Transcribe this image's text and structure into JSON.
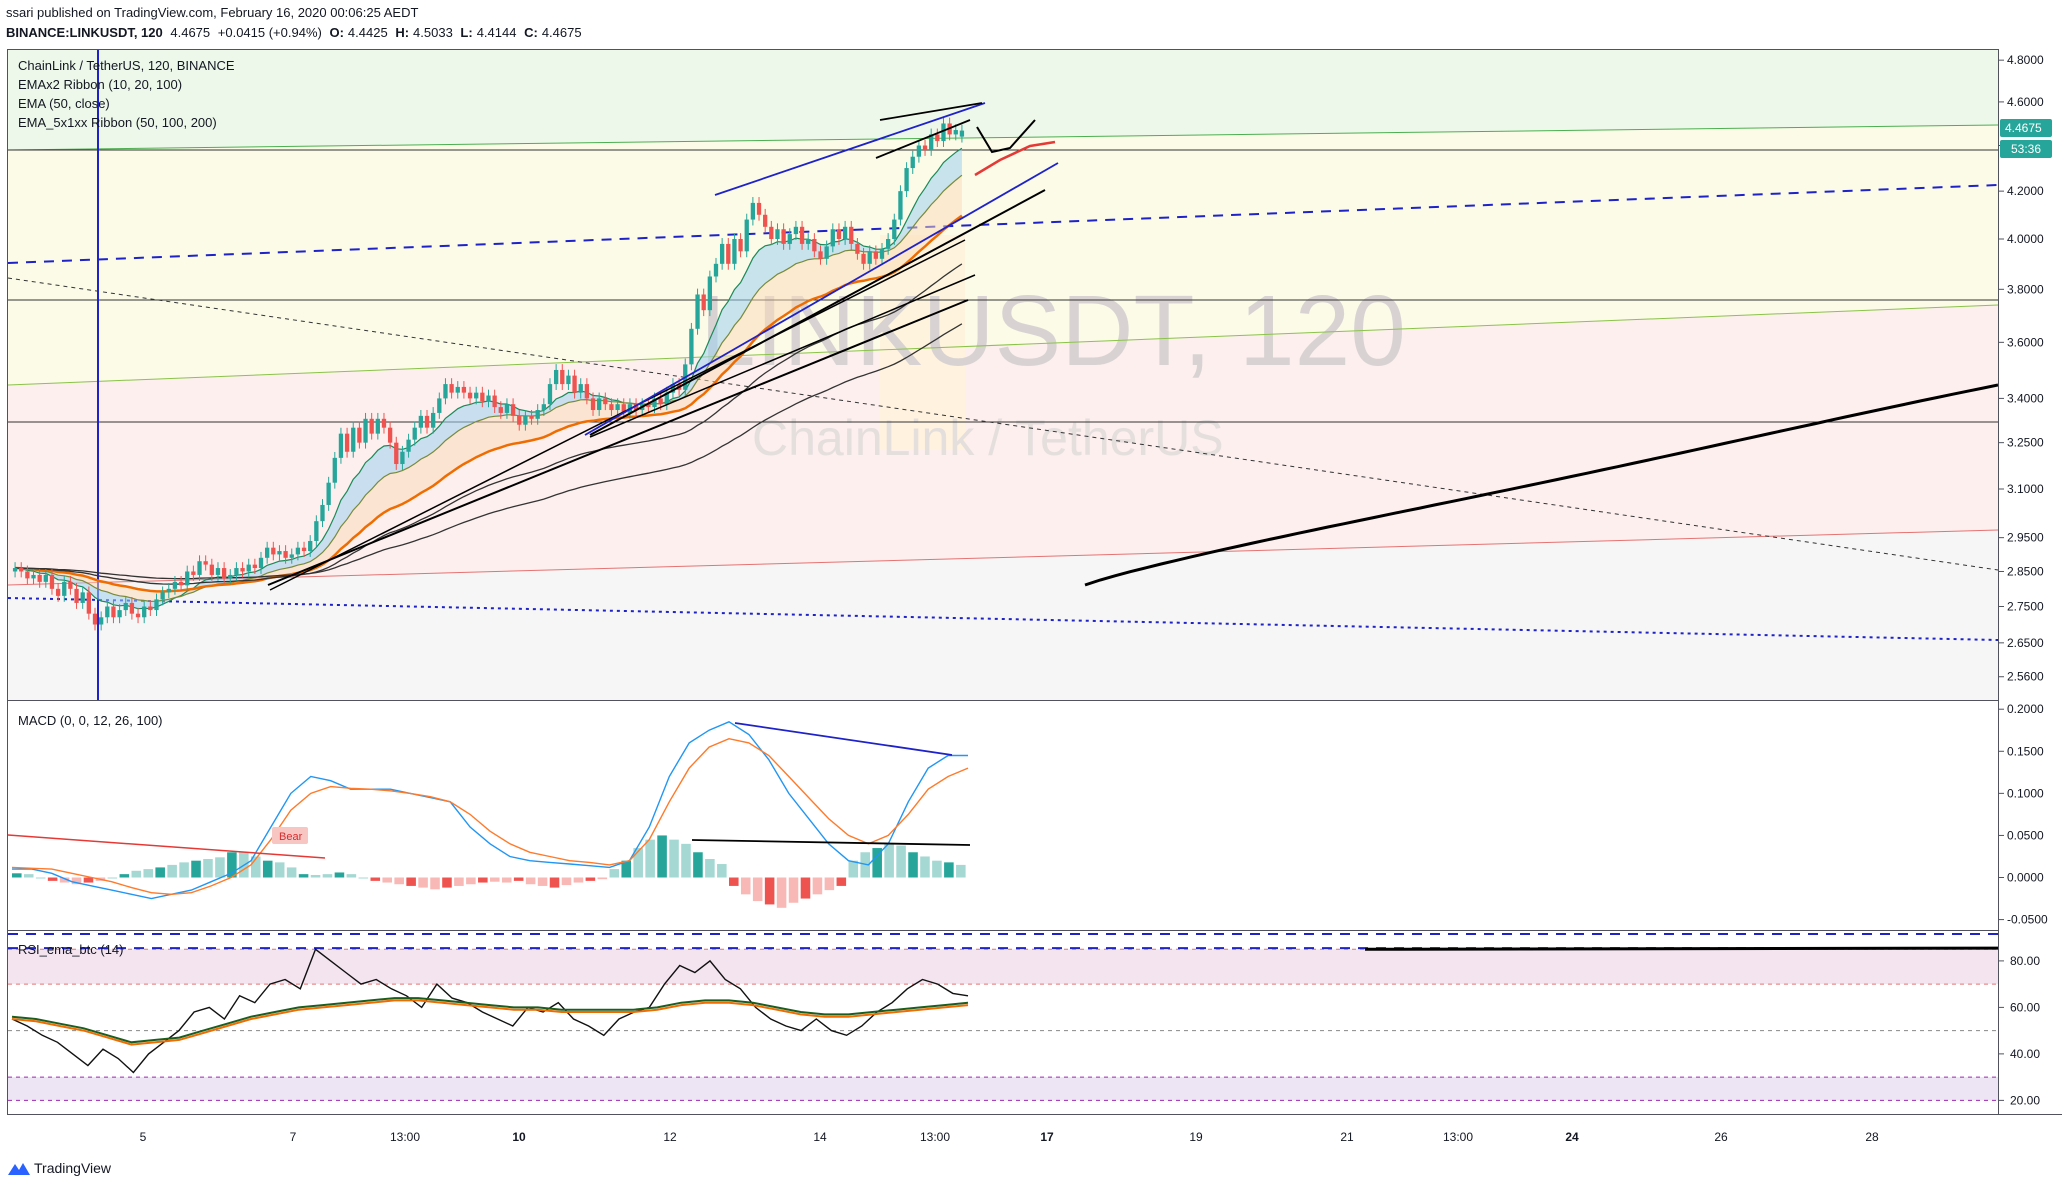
{
  "header": {
    "published": "ssari published on TradingView.com, February 16, 2020 00:06:25 AEDT",
    "symbol": "BINANCE:LINKUSDT, 120",
    "last": "4.4675",
    "change": "+0.0415 (+0.94%)",
    "o_label": "O:",
    "o": "4.4425",
    "h_label": "H:",
    "h": "4.5033",
    "l_label": "L:",
    "l": "4.4144",
    "c_label": "C:",
    "c": "4.4675"
  },
  "legend": {
    "title": "ChainLink / TetherUS, 120, BINANCE",
    "ind1": "EMAx2 Ribbon (10, 20, 100)",
    "ind2": "EMA (50, close)",
    "ind3": "EMA_5x1xx Ribbon (50, 100, 200)",
    "macd": "MACD (0, 0, 12, 26, 100)",
    "rsi": "RSI_ema_btc (14)",
    "bear": "Bear"
  },
  "watermark": {
    "symbol": "LINKUSDT, 120",
    "name": "ChainLink / TetherUS"
  },
  "price_badges": {
    "last": "4.4675",
    "countdown": "53:36"
  },
  "brand": "TradingView",
  "colors": {
    "up": "#26a69a",
    "down": "#ef5350",
    "ema_orange": "#ef6c00",
    "blue": "#1e22c8",
    "black": "#000000"
  },
  "chart_data": [
    {
      "type": "candlestick",
      "title": "ChainLink / TetherUS, 120, BINANCE",
      "ylim": [
        2.5,
        4.85
      ],
      "y_ticks": [
        "4.8000",
        "4.6000",
        "4.4000",
        "4.2000",
        "4.0000",
        "3.8000",
        "3.6000",
        "3.4000",
        "3.2500",
        "3.1000",
        "2.9500",
        "2.8500",
        "2.7500",
        "2.6500",
        "2.5600"
      ],
      "x_ticks": [
        "5",
        "7",
        "13:00",
        "10",
        "12",
        "14",
        "13:00",
        "17",
        "19",
        "21",
        "13:00",
        "24",
        "26",
        "28"
      ],
      "candles_approx": [
        [
          2.85,
          2.86
        ],
        [
          2.86,
          2.85
        ],
        [
          2.85,
          2.83
        ],
        [
          2.83,
          2.84
        ],
        [
          2.84,
          2.82
        ],
        [
          2.82,
          2.84
        ],
        [
          2.84,
          2.8
        ],
        [
          2.8,
          2.78
        ],
        [
          2.78,
          2.82
        ],
        [
          2.82,
          2.8
        ],
        [
          2.8,
          2.76
        ],
        [
          2.76,
          2.79
        ],
        [
          2.79,
          2.73
        ],
        [
          2.73,
          2.7
        ],
        [
          2.7,
          2.72
        ],
        [
          2.72,
          2.75
        ],
        [
          2.75,
          2.72
        ],
        [
          2.72,
          2.74
        ],
        [
          2.74,
          2.76
        ],
        [
          2.76,
          2.73
        ],
        [
          2.73,
          2.72
        ],
        [
          2.72,
          2.75
        ],
        [
          2.75,
          2.74
        ],
        [
          2.74,
          2.77
        ],
        [
          2.77,
          2.79
        ],
        [
          2.79,
          2.8
        ],
        [
          2.8,
          2.82
        ],
        [
          2.82,
          2.81
        ],
        [
          2.81,
          2.85
        ],
        [
          2.85,
          2.84
        ],
        [
          2.84,
          2.88
        ],
        [
          2.88,
          2.87
        ],
        [
          2.87,
          2.84
        ],
        [
          2.84,
          2.86
        ],
        [
          2.86,
          2.83
        ],
        [
          2.83,
          2.84
        ],
        [
          2.84,
          2.86
        ],
        [
          2.86,
          2.85
        ],
        [
          2.85,
          2.87
        ],
        [
          2.87,
          2.86
        ],
        [
          2.86,
          2.89
        ],
        [
          2.89,
          2.92
        ],
        [
          2.92,
          2.9
        ],
        [
          2.9,
          2.91
        ],
        [
          2.91,
          2.89
        ],
        [
          2.89,
          2.9
        ],
        [
          2.9,
          2.92
        ],
        [
          2.92,
          2.91
        ],
        [
          2.91,
          2.94
        ],
        [
          2.94,
          3.0
        ],
        [
          3.0,
          3.05
        ],
        [
          3.05,
          3.12
        ],
        [
          3.12,
          3.2
        ],
        [
          3.2,
          3.28
        ],
        [
          3.28,
          3.22
        ],
        [
          3.22,
          3.3
        ],
        [
          3.3,
          3.25
        ],
        [
          3.25,
          3.33
        ],
        [
          3.33,
          3.28
        ],
        [
          3.28,
          3.33
        ],
        [
          3.33,
          3.3
        ],
        [
          3.3,
          3.25
        ],
        [
          3.25,
          3.18
        ],
        [
          3.18,
          3.22
        ],
        [
          3.22,
          3.26
        ],
        [
          3.26,
          3.3
        ],
        [
          3.3,
          3.34
        ],
        [
          3.34,
          3.3
        ],
        [
          3.3,
          3.35
        ],
        [
          3.35,
          3.4
        ],
        [
          3.4,
          3.45
        ],
        [
          3.45,
          3.42
        ],
        [
          3.42,
          3.44
        ],
        [
          3.44,
          3.42
        ],
        [
          3.42,
          3.4
        ],
        [
          3.4,
          3.42
        ],
        [
          3.42,
          3.39
        ],
        [
          3.39,
          3.41
        ],
        [
          3.41,
          3.37
        ],
        [
          3.37,
          3.35
        ],
        [
          3.35,
          3.38
        ],
        [
          3.38,
          3.34
        ],
        [
          3.34,
          3.31
        ],
        [
          3.31,
          3.34
        ],
        [
          3.34,
          3.33
        ],
        [
          3.33,
          3.36
        ],
        [
          3.36,
          3.38
        ],
        [
          3.38,
          3.45
        ],
        [
          3.45,
          3.5
        ],
        [
          3.5,
          3.45
        ],
        [
          3.45,
          3.48
        ],
        [
          3.48,
          3.42
        ],
        [
          3.42,
          3.45
        ],
        [
          3.45,
          3.4
        ],
        [
          3.4,
          3.36
        ],
        [
          3.36,
          3.4
        ],
        [
          3.4,
          3.38
        ],
        [
          3.38,
          3.36
        ],
        [
          3.36,
          3.38
        ],
        [
          3.38,
          3.35
        ],
        [
          3.35,
          3.38
        ],
        [
          3.38,
          3.36
        ],
        [
          3.36,
          3.38
        ],
        [
          3.38,
          3.37
        ],
        [
          3.37,
          3.4
        ],
        [
          3.4,
          3.38
        ],
        [
          3.38,
          3.42
        ],
        [
          3.42,
          3.45
        ],
        [
          3.45,
          3.43
        ],
        [
          3.43,
          3.52
        ],
        [
          3.52,
          3.65
        ],
        [
          3.65,
          3.78
        ],
        [
          3.78,
          3.72
        ],
        [
          3.72,
          3.85
        ],
        [
          3.85,
          3.9
        ],
        [
          3.9,
          3.98
        ],
        [
          3.98,
          3.9
        ],
        [
          3.9,
          4.0
        ],
        [
          4.0,
          3.95
        ],
        [
          3.95,
          4.08
        ],
        [
          4.08,
          4.15
        ],
        [
          4.15,
          4.1
        ],
        [
          4.1,
          4.05
        ],
        [
          4.05,
          4.0
        ],
        [
          4.0,
          4.04
        ],
        [
          4.04,
          3.98
        ],
        [
          3.98,
          4.02
        ],
        [
          4.02,
          4.05
        ],
        [
          4.05,
          3.98
        ],
        [
          3.98,
          4.0
        ],
        [
          4.0,
          3.95
        ],
        [
          3.95,
          3.92
        ],
        [
          3.92,
          3.97
        ],
        [
          3.97,
          4.04
        ],
        [
          4.04,
          4.0
        ],
        [
          4.0,
          4.05
        ],
        [
          4.05,
          3.98
        ],
        [
          3.98,
          3.94
        ],
        [
          3.94,
          3.9
        ],
        [
          3.9,
          3.95
        ],
        [
          3.95,
          3.92
        ],
        [
          3.92,
          3.96
        ],
        [
          3.96,
          4.0
        ],
        [
          4.0,
          4.08
        ],
        [
          4.08,
          4.2
        ],
        [
          4.2,
          4.3
        ],
        [
          4.3,
          4.35
        ],
        [
          4.35,
          4.4
        ],
        [
          4.4,
          4.38
        ],
        [
          4.38,
          4.45
        ],
        [
          4.45,
          4.42
        ],
        [
          4.42,
          4.5
        ],
        [
          4.5,
          4.45
        ],
        [
          4.45,
          4.47
        ],
        [
          4.44,
          4.4675
        ]
      ]
    },
    {
      "type": "line",
      "title": "MACD (0, 0, 12, 26, 100)",
      "ylim": [
        -0.06,
        0.205
      ],
      "y_ticks": [
        "0.2000",
        "0.1500",
        "0.1000",
        "0.0500",
        "0.0000",
        "-0.0500"
      ],
      "macd": [
        0.01,
        0.01,
        0.005,
        -0.005,
        -0.01,
        -0.015,
        -0.02,
        -0.025,
        -0.02,
        -0.015,
        -0.005,
        0.005,
        0.02,
        0.06,
        0.1,
        0.12,
        0.115,
        0.105,
        0.105,
        0.105,
        0.1,
        0.095,
        0.09,
        0.06,
        0.04,
        0.025,
        0.02,
        0.018,
        0.016,
        0.014,
        0.012,
        0.02,
        0.06,
        0.12,
        0.16,
        0.175,
        0.185,
        0.17,
        0.14,
        0.1,
        0.07,
        0.04,
        0.02,
        0.015,
        0.04,
        0.09,
        0.13,
        0.145,
        0.145
      ],
      "signal": [
        0.012,
        0.011,
        0.01,
        0.005,
        0.0,
        -0.005,
        -0.012,
        -0.018,
        -0.02,
        -0.018,
        -0.01,
        0.0,
        0.015,
        0.045,
        0.08,
        0.1,
        0.108,
        0.106,
        0.105,
        0.103,
        0.1,
        0.096,
        0.09,
        0.075,
        0.055,
        0.04,
        0.03,
        0.025,
        0.02,
        0.018,
        0.015,
        0.02,
        0.045,
        0.09,
        0.13,
        0.155,
        0.165,
        0.16,
        0.145,
        0.12,
        0.095,
        0.07,
        0.05,
        0.04,
        0.05,
        0.075,
        0.105,
        0.12,
        0.13
      ],
      "histogram": [
        0.005,
        0.004,
        0.0,
        -0.004,
        -0.006,
        -0.008,
        -0.006,
        -0.004,
        0.0,
        0.004,
        0.008,
        0.01,
        0.012,
        0.015,
        0.018,
        0.02,
        0.022,
        0.024,
        0.03,
        0.03,
        0.025,
        0.02,
        0.018,
        0.012,
        0.004,
        0.003,
        0.004,
        0.006,
        0.004,
        0.0,
        -0.004,
        -0.006,
        -0.008,
        -0.01,
        -0.012,
        -0.014,
        -0.012,
        -0.01,
        -0.008,
        -0.006,
        -0.005,
        -0.006,
        -0.004,
        -0.008,
        -0.01,
        -0.012,
        -0.009,
        -0.006,
        -0.004,
        -0.002,
        0.01,
        0.02,
        0.035,
        0.045,
        0.05,
        0.045,
        0.04,
        0.03,
        0.022,
        0.016,
        -0.01,
        -0.02,
        -0.028,
        -0.032,
        -0.036,
        -0.03,
        -0.025,
        -0.02,
        -0.015,
        -0.01,
        0.02,
        0.03,
        0.035,
        0.04,
        0.038,
        0.03,
        0.025,
        0.02,
        0.018,
        0.015
      ]
    },
    {
      "type": "line",
      "title": "RSI_ema_btc (14)",
      "ylim": [
        15,
        92
      ],
      "y_ticks": [
        "80.00",
        "60.00",
        "40.00",
        "20.00"
      ],
      "rsi": [
        55,
        52,
        48,
        45,
        40,
        35,
        42,
        38,
        32,
        40,
        45,
        50,
        58,
        60,
        55,
        65,
        62,
        70,
        72,
        68,
        85,
        80,
        75,
        70,
        72,
        68,
        65,
        60,
        70,
        64,
        62,
        58,
        55,
        52,
        60,
        58,
        62,
        55,
        52,
        48,
        55,
        58,
        60,
        70,
        78,
        75,
        80,
        72,
        68,
        60,
        55,
        52,
        50,
        55,
        50,
        48,
        52,
        58,
        62,
        68,
        72,
        70,
        66,
        65
      ],
      "rsi_ema": [
        56,
        55,
        53,
        51,
        48,
        45,
        46,
        47,
        50,
        53,
        56,
        58,
        60,
        61,
        62,
        63,
        64,
        64,
        63,
        62,
        61,
        60,
        60,
        59,
        59,
        59,
        59,
        60,
        62,
        63,
        63,
        62,
        60,
        58,
        57,
        57,
        58,
        59,
        60,
        61,
        62
      ]
    }
  ]
}
